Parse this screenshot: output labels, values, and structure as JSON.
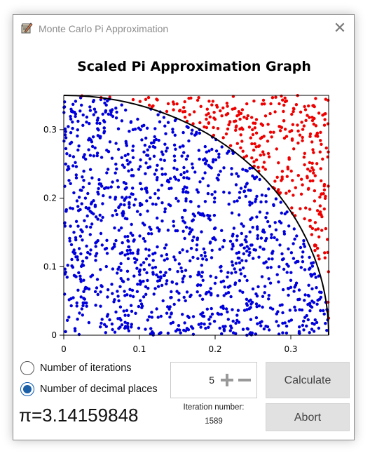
{
  "window": {
    "title": "Monte Carlo Pi Approximation",
    "close_glyph": "✕"
  },
  "chart_data": {
    "type": "scatter",
    "title": "Scaled Pi Approximation Graph",
    "xlabel": "",
    "ylabel": "",
    "xlim": [
      0,
      0.35
    ],
    "ylim": [
      0,
      0.35
    ],
    "x_ticks": [
      "0",
      "0.1",
      "0.2",
      "0.3"
    ],
    "y_ticks": [
      "0",
      "0.1",
      "0.2",
      "0.3"
    ],
    "grid": false,
    "quarter_circle_radius": 0.35,
    "point_count": 1589,
    "series": [
      {
        "name": "",
        "color": "#0000dd",
        "region": "inside quarter circle"
      },
      {
        "name": "",
        "color": "#ee0000",
        "region": "outside quarter circle"
      }
    ],
    "curve_color": "#000000"
  },
  "controls": {
    "radio_iterations_label": "Number of iterations",
    "radio_decimals_label": "Number of decimal places",
    "selected_mode": "decimal_places",
    "pi_text": "π=3.14159848",
    "stepper_value": "5",
    "iteration_caption": "Iteration number:",
    "iteration_value": "1589",
    "calculate_label": "Calculate",
    "abort_label": "Abort"
  },
  "colors": {
    "accent": "#1a5fa8",
    "button_bg": "#e1e1e1"
  }
}
